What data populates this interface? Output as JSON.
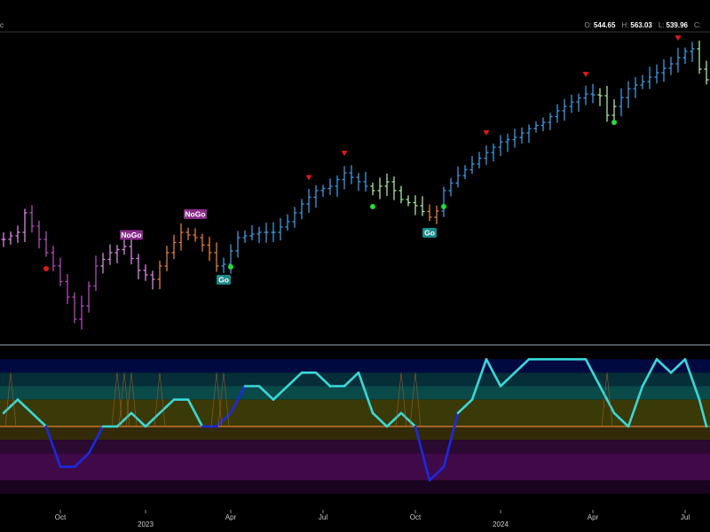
{
  "header": {
    "corner_mark": "c",
    "ohlc": [
      {
        "key": "O:",
        "value": "544.65"
      },
      {
        "key": "H:",
        "value": "563.03"
      },
      {
        "key": "L:",
        "value": "539.96"
      },
      {
        "key": "C:",
        "value": ""
      }
    ]
  },
  "chart_data": [
    {
      "type": "ohlc",
      "title": "",
      "x_tick_labels": [
        "Oct",
        "2023",
        "Apr",
        "Jul",
        "Oct",
        "2024",
        "Apr",
        "Jul"
      ],
      "approx_price_range": [
        430,
        565
      ],
      "bar_colors": {
        "strong_go": "#3a9be0",
        "weak_go": "#a8e6a0",
        "nogo": "#b04ab8",
        "weak_nogo": "#d888e0",
        "neutral": "#e0803a"
      },
      "labels": [
        {
          "text": "NoGo",
          "at_week": 18,
          "kind": "nogo"
        },
        {
          "text": "NoGo",
          "at_week": 27,
          "kind": "nogo"
        },
        {
          "text": "Go",
          "at_week": 31,
          "kind": "go"
        },
        {
          "text": "Go",
          "at_week": 60,
          "kind": "go"
        }
      ],
      "markers": [
        {
          "type": "red-dot",
          "week": 6
        },
        {
          "type": "green-dot",
          "week": 32
        },
        {
          "type": "red-triangle",
          "week": 43
        },
        {
          "type": "red-triangle",
          "week": 48
        },
        {
          "type": "green-dot",
          "week": 52
        },
        {
          "type": "green-dot",
          "week": 62
        },
        {
          "type": "red-triangle",
          "week": 68
        },
        {
          "type": "red-triangle",
          "week": 82
        },
        {
          "type": "green-dot",
          "week": 86
        },
        {
          "type": "red-triangle",
          "week": 95
        }
      ]
    },
    {
      "type": "line",
      "title": "",
      "y_range": [
        -6,
        6
      ],
      "zones": [
        {
          "from": 4,
          "to": 5,
          "color": "#000a40"
        },
        {
          "from": 3,
          "to": 4,
          "color": "#052e38"
        },
        {
          "from": 2,
          "to": 3,
          "color": "#0a4a48"
        },
        {
          "from": 0,
          "to": 2,
          "color": "#3a3a08"
        },
        {
          "from": -1,
          "to": 0,
          "color": "#332a08"
        },
        {
          "from": -2,
          "to": -1,
          "color": "#2a0a30"
        },
        {
          "from": -4,
          "to": -2,
          "color": "#400a48"
        },
        {
          "from": -5,
          "to": -4,
          "color": "#1a0520"
        }
      ],
      "zero_line_color": "#e0803a"
    }
  ]
}
